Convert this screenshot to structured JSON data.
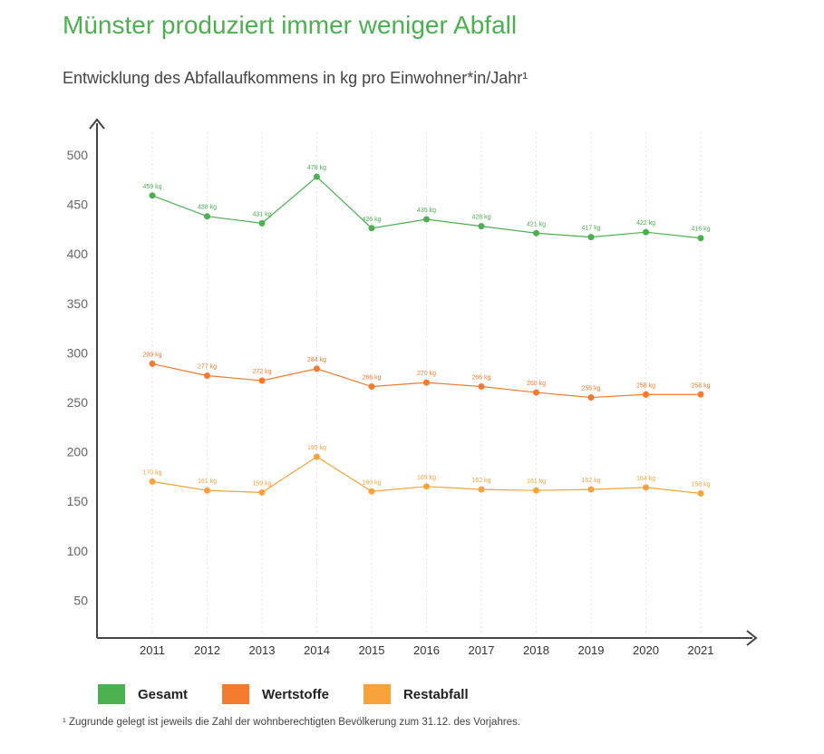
{
  "header": {
    "title": "Münster produziert immer weniger Abfall",
    "subtitle": "Entwicklung des Abfallaufkommens in kg pro Einwohner*in/Jahr¹"
  },
  "footnote": "¹ Zugrunde gelegt ist jeweils die Zahl der wohnberechtigten Bevölkerung zum 31.12. des Vorjahres.",
  "chart_data": {
    "type": "line",
    "categories": [
      "2011",
      "2012",
      "2013",
      "2014",
      "2015",
      "2016",
      "2017",
      "2018",
      "2019",
      "2020",
      "2021"
    ],
    "yticks": [
      50,
      100,
      150,
      200,
      250,
      300,
      350,
      400,
      450,
      500
    ],
    "ylim": [
      0,
      520
    ],
    "grid": "vertical dotted",
    "legend_position": "bottom-left",
    "series": [
      {
        "name": "Gesamt",
        "color": "#4caf50",
        "values": [
          459,
          438,
          431,
          478,
          426,
          435,
          428,
          421,
          417,
          422,
          416
        ],
        "labels": [
          "459 kg",
          "438 kg",
          "431 kg",
          "478 kg",
          "426 kg",
          "435 kg",
          "428 kg",
          "421 kg",
          "417 kg",
          "422 kg",
          "416 kg"
        ]
      },
      {
        "name": "Wertstoffe",
        "color": "#f47a30",
        "values": [
          289,
          277,
          272,
          284,
          266,
          270,
          266,
          260,
          255,
          258,
          258
        ],
        "labels": [
          "289 kg",
          "277 kg",
          "272 kg",
          "284 kg",
          "266 kg",
          "270 kg",
          "266 kg",
          "260 kg",
          "255 kg",
          "258 kg",
          "258 kg"
        ]
      },
      {
        "name": "Restabfall",
        "color": "#f7a23a",
        "values": [
          170,
          161,
          159,
          195,
          160,
          165,
          162,
          161,
          162,
          164,
          158
        ],
        "labels": [
          "170 kg",
          "161 kg",
          "159 kg",
          "195 kg",
          "160 kg",
          "165 kg",
          "162 kg",
          "161 kg",
          "162 kg",
          "164 kg",
          "158 kg"
        ]
      }
    ]
  }
}
